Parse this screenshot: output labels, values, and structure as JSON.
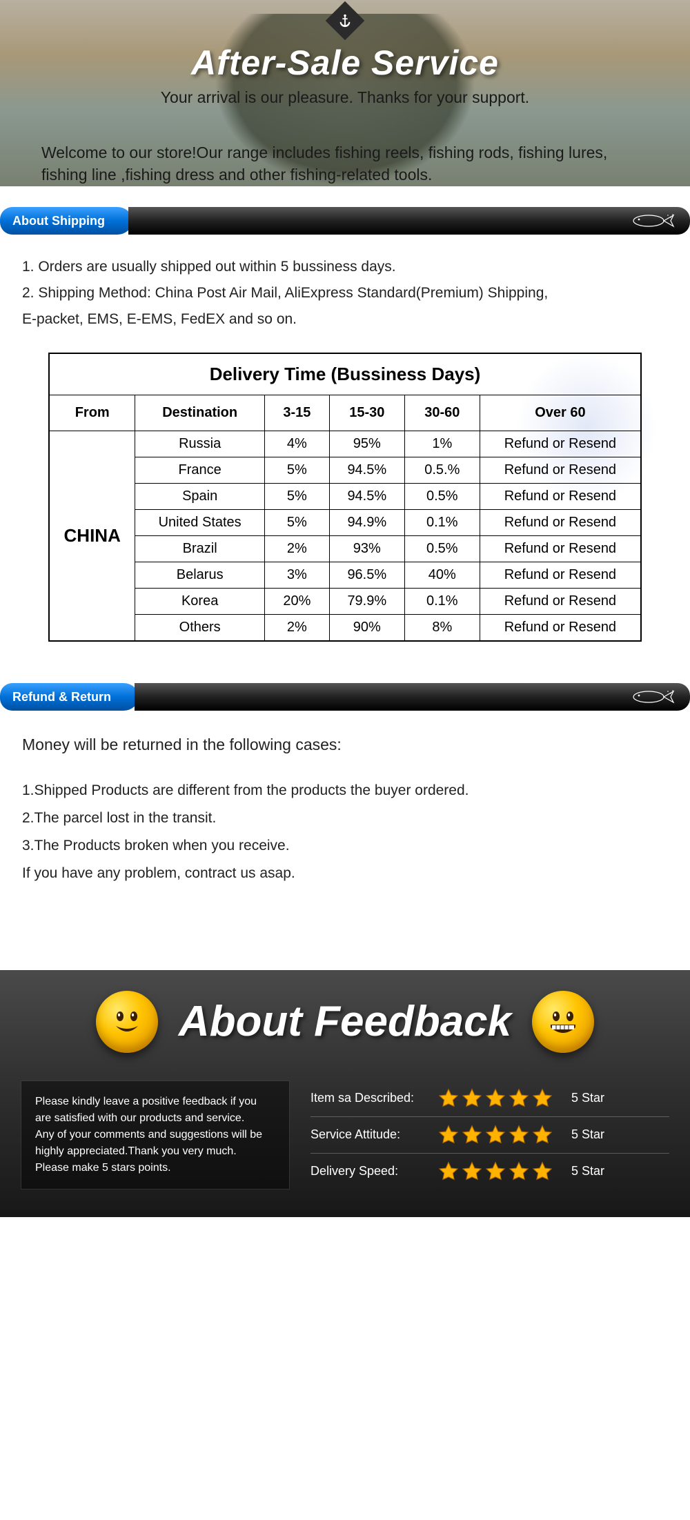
{
  "hero": {
    "title": "After-Sale Service",
    "subtitle": "Your arrival is our pleasure. Thanks for your support.",
    "welcome": "Welcome to our store!Our range includes fishing reels, fishing rods, fishing lures, fishing line ,fishing dress and other fishing-related tools."
  },
  "shipping": {
    "tab_label": "About Shipping",
    "line1": "1. Orders are usually shipped out within 5 bussiness days.",
    "line2": "2. Shipping Method: China Post Air Mail, AliExpress Standard(Premium) Shipping,",
    "line3": "E-packet, EMS,  E-EMS, FedEX and so on."
  },
  "delivery_table": {
    "title": "Delivery Time (Bussiness Days)",
    "headers": {
      "from": "From",
      "destination": "Destination",
      "c3_15": "3-15",
      "c15_30": "15-30",
      "c30_60": "30-60",
      "over60": "Over 60"
    },
    "from_value": "CHINA",
    "rows": [
      {
        "dest": "Russia",
        "c1": "4%",
        "c2": "95%",
        "c3": "1%",
        "c4": "Refund or Resend"
      },
      {
        "dest": "France",
        "c1": "5%",
        "c2": "94.5%",
        "c3": "0.5.%",
        "c4": "Refund or Resend"
      },
      {
        "dest": "Spain",
        "c1": "5%",
        "c2": "94.5%",
        "c3": "0.5%",
        "c4": "Refund or Resend"
      },
      {
        "dest": "United States",
        "c1": "5%",
        "c2": "94.9%",
        "c3": "0.1%",
        "c4": "Refund or Resend"
      },
      {
        "dest": "Brazil",
        "c1": "2%",
        "c2": "93%",
        "c3": "0.5%",
        "c4": "Refund or Resend"
      },
      {
        "dest": "Belarus",
        "c1": "3%",
        "c2": "96.5%",
        "c3": "40%",
        "c4": "Refund or Resend"
      },
      {
        "dest": "Korea",
        "c1": "20%",
        "c2": "79.9%",
        "c3": "0.1%",
        "c4": "Refund or Resend"
      },
      {
        "dest": "Others",
        "c1": "2%",
        "c2": "90%",
        "c3": "8%",
        "c4": "Refund or Resend"
      }
    ],
    "colors": {
      "border": "#000000",
      "header_text": "#000000"
    }
  },
  "refund": {
    "tab_label": "Refund & Return",
    "lead": "Money will be returned in the following cases:",
    "l1": "1.Shipped Products are different from the products the buyer ordered.",
    "l2": "2.The parcel lost in the transit.",
    "l3": "3.The Products broken when you receive.",
    "l4": "If you have any problem, contract us asap."
  },
  "feedback": {
    "title": "About Feedback",
    "left_p1": "Please kindly leave a positive feedback if you are satisfied with our products and service.",
    "left_p2": "Any of your comments and suggestions will be highly appreciated.Thank you very much.",
    "left_p3": "Please make 5 stars points.",
    "rows": [
      {
        "label": "Item sa Described:",
        "score": "5 Star"
      },
      {
        "label": "Service Attitude:",
        "score": "5 Star"
      },
      {
        "label": "Delivery Speed:",
        "score": "5 Star"
      }
    ],
    "star_color": "#ffb300",
    "star_stroke": "#b36a00"
  }
}
